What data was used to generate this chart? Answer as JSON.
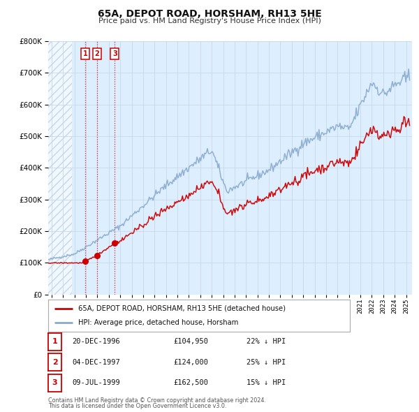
{
  "title": "65A, DEPOT ROAD, HORSHAM, RH13 5HE",
  "subtitle": "Price paid vs. HM Land Registry's House Price Index (HPI)",
  "legend_label_red": "65A, DEPOT ROAD, HORSHAM, RH13 5HE (detached house)",
  "legend_label_blue": "HPI: Average price, detached house, Horsham",
  "transactions": [
    {
      "num": 1,
      "date": "20-DEC-1996",
      "year": 1996.96,
      "price": 104950,
      "pct": "22%",
      "dir": "↓"
    },
    {
      "num": 2,
      "date": "04-DEC-1997",
      "year": 1997.96,
      "price": 124000,
      "pct": "25%",
      "dir": "↓"
    },
    {
      "num": 3,
      "date": "09-JUL-1999",
      "year": 1999.52,
      "price": 162500,
      "pct": "15%",
      "dir": "↓"
    }
  ],
  "footnote1": "Contains HM Land Registry data © Crown copyright and database right 2024.",
  "footnote2": "This data is licensed under the Open Government Licence v3.0.",
  "red_color": "#cc0000",
  "blue_color": "#88aacc",
  "vline_color": "#cc0000",
  "grid_color": "#c8d8e8",
  "ylim": [
    0,
    800000
  ],
  "xlim_start": 1993.7,
  "xlim_end": 2025.5,
  "bg_color": "#ffffff",
  "plot_bg_color": "#ddeeff"
}
